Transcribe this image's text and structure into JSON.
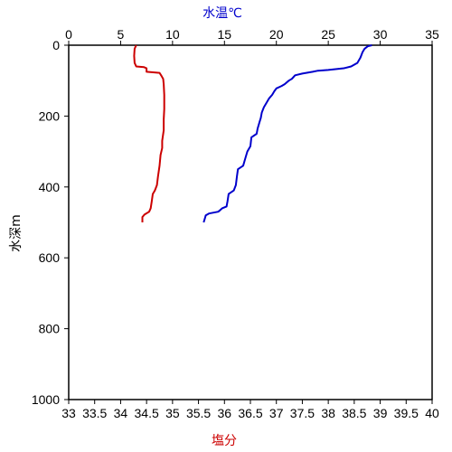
{
  "chart_data": {
    "type": "line",
    "title": "",
    "top_axis": {
      "label": "水温℃",
      "label_color": "#0000cc",
      "range": [
        0,
        35
      ],
      "ticks": [
        0,
        5,
        10,
        15,
        20,
        25,
        30,
        35
      ],
      "tick_labels": [
        "0",
        "5",
        "10",
        "15",
        "20",
        "25",
        "30",
        "35"
      ]
    },
    "bottom_axis": {
      "label": "塩分",
      "label_color": "#cc0000",
      "range": [
        33,
        40
      ],
      "ticks": [
        33,
        33.5,
        34,
        34.5,
        35,
        35.5,
        36,
        36.5,
        37,
        37.5,
        38,
        38.5,
        39,
        39.5,
        40
      ],
      "tick_labels": [
        "33",
        "33.5",
        "34",
        "34.5",
        "35",
        "35.5",
        "36",
        "36.5",
        "37",
        "37.5",
        "38",
        "38.5",
        "39",
        "39.5",
        "40"
      ]
    },
    "y_axis": {
      "label": "水深m",
      "inverted": true,
      "range": [
        0,
        1000
      ],
      "ticks": [
        0,
        200,
        400,
        600,
        800,
        1000
      ],
      "tick_labels": [
        "0",
        "200",
        "400",
        "600",
        "800",
        "1000"
      ]
    },
    "grid": false,
    "series": [
      {
        "axis": "top",
        "color": "#0000cc",
        "points": [
          [
            29.2,
            0
          ],
          [
            28.8,
            3
          ],
          [
            28.5,
            10
          ],
          [
            28.3,
            20
          ],
          [
            28.1,
            35
          ],
          [
            27.8,
            50
          ],
          [
            27.2,
            60
          ],
          [
            26.5,
            65
          ],
          [
            25,
            70
          ],
          [
            24,
            72
          ],
          [
            23.5,
            75
          ],
          [
            22.5,
            80
          ],
          [
            21.8,
            85
          ],
          [
            21.5,
            95
          ],
          [
            21.2,
            100
          ],
          [
            20.8,
            110
          ],
          [
            20.5,
            115
          ],
          [
            20,
            122
          ],
          [
            19.8,
            130
          ],
          [
            19.6,
            140
          ],
          [
            19.3,
            150
          ],
          [
            19,
            165
          ],
          [
            18.8,
            175
          ],
          [
            18.6,
            190
          ],
          [
            18.5,
            205
          ],
          [
            18.4,
            215
          ],
          [
            18.2,
            235
          ],
          [
            18.1,
            250
          ],
          [
            17.6,
            260
          ],
          [
            17.5,
            285
          ],
          [
            17.2,
            300
          ],
          [
            17,
            320
          ],
          [
            16.8,
            340
          ],
          [
            16.3,
            350
          ],
          [
            16.2,
            370
          ],
          [
            16.1,
            395
          ],
          [
            15.9,
            410
          ],
          [
            15.4,
            420
          ],
          [
            15.3,
            440
          ],
          [
            15.2,
            455
          ],
          [
            14.8,
            460
          ],
          [
            14.6,
            465
          ],
          [
            14.4,
            470
          ],
          [
            13.5,
            475
          ],
          [
            13.2,
            480
          ],
          [
            13.1,
            490
          ],
          [
            13,
            500
          ]
        ]
      },
      {
        "axis": "bottom",
        "color": "#cc0000",
        "points": [
          [
            34.3,
            0
          ],
          [
            34.27,
            10
          ],
          [
            34.26,
            30
          ],
          [
            34.27,
            50
          ],
          [
            34.3,
            60
          ],
          [
            34.45,
            62
          ],
          [
            34.5,
            65
          ],
          [
            34.5,
            75
          ],
          [
            34.75,
            78
          ],
          [
            34.78,
            85
          ],
          [
            34.82,
            95
          ],
          [
            34.83,
            110
          ],
          [
            34.84,
            140
          ],
          [
            34.84,
            180
          ],
          [
            34.83,
            210
          ],
          [
            34.83,
            240
          ],
          [
            34.8,
            270
          ],
          [
            34.8,
            290
          ],
          [
            34.77,
            310
          ],
          [
            34.75,
            340
          ],
          [
            34.72,
            370
          ],
          [
            34.7,
            395
          ],
          [
            34.66,
            410
          ],
          [
            34.62,
            420
          ],
          [
            34.6,
            440
          ],
          [
            34.58,
            460
          ],
          [
            34.55,
            470
          ],
          [
            34.46,
            478
          ],
          [
            34.42,
            485
          ],
          [
            34.42,
            500
          ]
        ]
      }
    ]
  }
}
